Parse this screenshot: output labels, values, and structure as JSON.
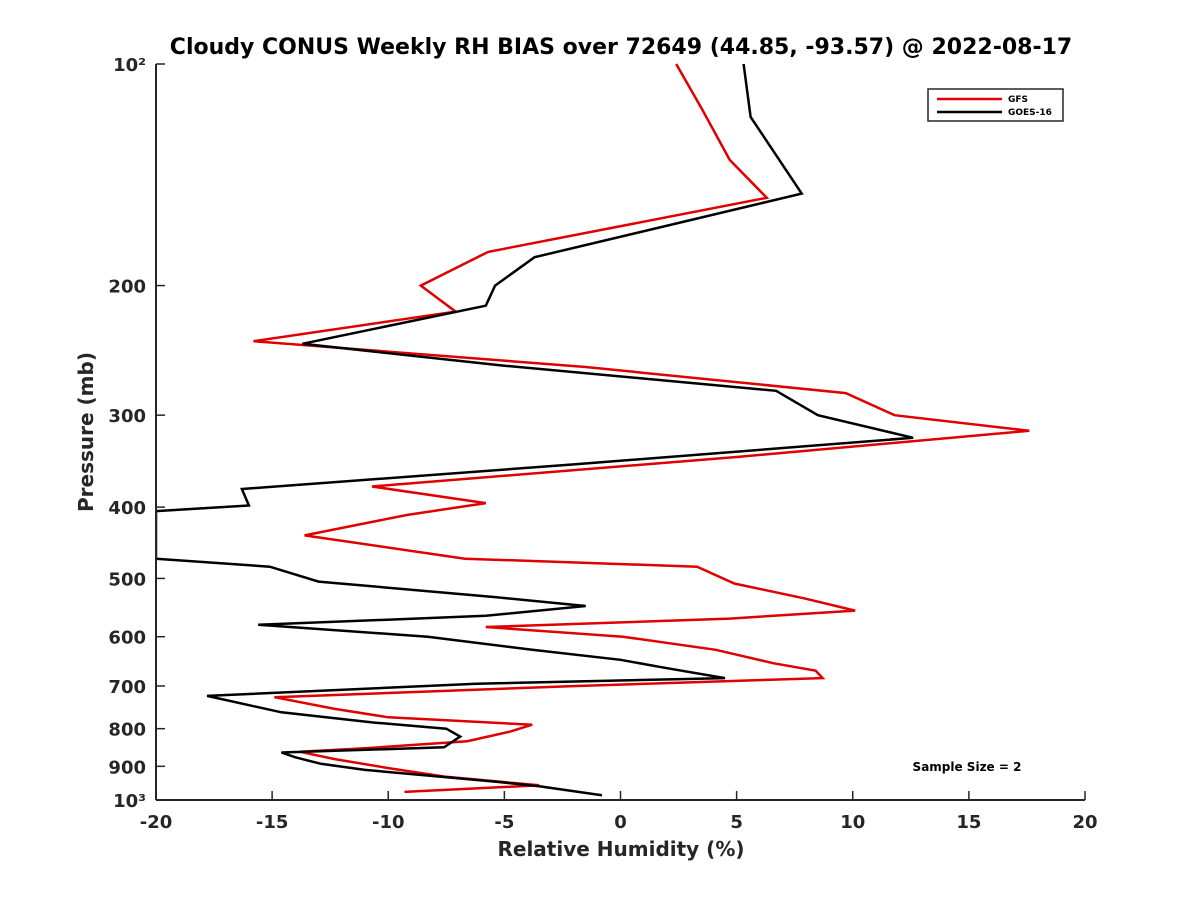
{
  "chart_data": {
    "type": "line",
    "title": "Cloudy CONUS Weekly RH BIAS over 72649 (44.85, -93.57) @ 2022-08-17",
    "xlabel": "Relative Humidity (%)",
    "ylabel": "Pressure (mb)",
    "xlim": [
      -20,
      20
    ],
    "ylim": [
      100,
      1000
    ],
    "y_scale": "log",
    "y_reversed": true,
    "grid": false,
    "legend_position": "top-right",
    "x_ticks": [
      -20,
      -15,
      -10,
      -5,
      0,
      5,
      10,
      15,
      20
    ],
    "x_tick_labels": [
      "-20",
      "-15",
      "-10",
      "-5",
      "0",
      "5",
      "10",
      "15",
      "20"
    ],
    "y_ticks": [
      100,
      200,
      300,
      400,
      500,
      600,
      700,
      800,
      900,
      1000
    ],
    "y_tick_labels": [
      "10²",
      "200",
      "300",
      "400",
      "500",
      "600",
      "700",
      "800",
      "900",
      "10³"
    ],
    "annotation": "Sample Size = 2",
    "series": [
      {
        "name": "GFS",
        "color": "#e00000",
        "x": [
          2.4,
          3.5,
          4.7,
          6.3,
          -5.7,
          -8.6,
          -7.1,
          -15.8,
          -1.5,
          9.7,
          11.8,
          17.6,
          5.0,
          -10.7,
          -5.8,
          -9.2,
          -13.6,
          -6.7,
          3.3,
          4.9,
          7.9,
          10.1,
          4.7,
          -5.8,
          0.1,
          4.1,
          6.6,
          8.4,
          8.7,
          -1.9,
          -14.9,
          -12.3,
          -10.0,
          -3.8,
          -4.8,
          -6.6,
          -10.9,
          -13.8,
          -12.3,
          -10.0,
          -7.5,
          -3.5,
          -9.3
        ],
        "y": [
          100,
          115,
          135,
          152,
          180,
          200,
          217,
          238,
          258,
          280,
          300,
          315,
          342,
          375,
          395,
          410,
          437,
          470,
          482,
          508,
          532,
          553,
          567,
          582,
          600,
          625,
          652,
          667,
          683,
          700,
          725,
          752,
          772,
          790,
          808,
          832,
          850,
          860,
          880,
          905,
          930,
          955,
          975
        ],
        "_y_log": true
      },
      {
        "name": "GOES-16",
        "color": "#000000",
        "x": [
          5.3,
          5.6,
          7.8,
          -3.7,
          -5.4,
          -5.8,
          -13.7,
          -5.0,
          6.7,
          8.5,
          12.6,
          -2.0,
          -16.3,
          -16.0,
          -20.0,
          -20.0,
          -15.1,
          -13.0,
          -5.4,
          -1.5,
          -5.8,
          -15.6,
          -8.3,
          -3.8,
          0.0,
          2.0,
          4.5,
          -6.2,
          -17.8,
          -14.6,
          -10.6,
          -7.5,
          -6.9,
          -7.6,
          -14.6,
          -14.0,
          -12.9,
          -11.0,
          -8.5,
          -5.3,
          -3.5,
          -0.8
        ],
        "y": [
          100,
          118,
          150,
          183,
          200,
          213,
          240,
          257,
          278,
          300,
          322,
          350,
          378,
          398,
          405,
          470,
          482,
          505,
          530,
          545,
          562,
          578,
          600,
          625,
          645,
          662,
          683,
          695,
          722,
          760,
          785,
          800,
          820,
          848,
          862,
          875,
          893,
          910,
          925,
          945,
          958,
          985
        ]
      }
    ]
  }
}
